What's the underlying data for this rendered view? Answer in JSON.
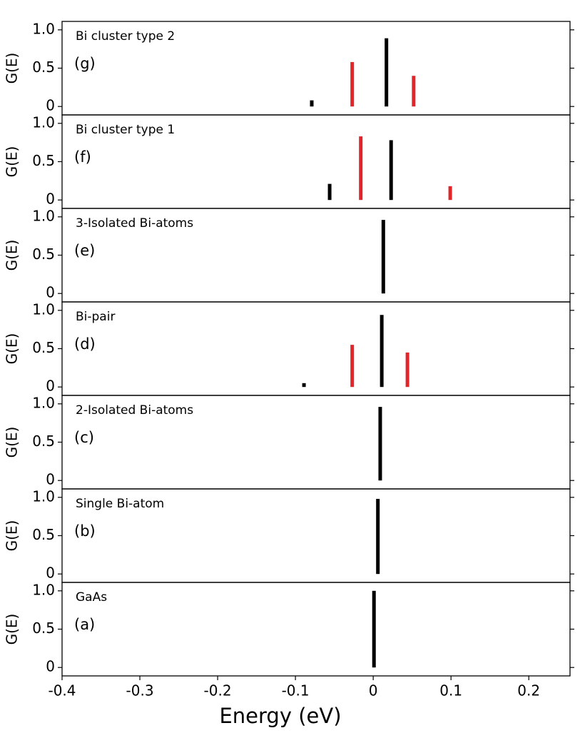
{
  "chart_data": [
    {
      "type": "bar",
      "title": "Bi cluster type 2",
      "label": "(g)",
      "ylabel": "G(E)",
      "x": [
        -0.079,
        -0.027,
        0.017,
        0.052
      ],
      "values": [
        0.08,
        0.58,
        0.89,
        0.4
      ],
      "colors": [
        "#000000",
        "#e0262b",
        "#000000",
        "#e0262b"
      ],
      "xlim": [
        -0.4,
        0.253
      ],
      "ylim": [
        -0.11,
        1.11
      ],
      "yticks": [
        0,
        0.5,
        {
          "value": 1,
          "label": "1.0"
        }
      ]
    },
    {
      "type": "bar",
      "title": "Bi cluster type 1",
      "label": "(f)",
      "ylabel": "G(E)",
      "x": [
        -0.056,
        -0.016,
        0.023,
        0.099
      ],
      "values": [
        0.21,
        0.83,
        0.78,
        0.18
      ],
      "colors": [
        "#000000",
        "#e0262b",
        "#000000",
        "#e0262b"
      ],
      "xlim": [
        -0.4,
        0.253
      ],
      "ylim": [
        -0.11,
        1.11
      ],
      "yticks": [
        0,
        0.5,
        {
          "value": 1,
          "label": "1.0"
        }
      ]
    },
    {
      "type": "bar",
      "title": "3-Isolated Bi-atoms",
      "label": "(e)",
      "ylabel": "G(E)",
      "x": [
        0.013
      ],
      "values": [
        0.96
      ],
      "colors": [
        "#000000"
      ],
      "xlim": [
        -0.4,
        0.253
      ],
      "ylim": [
        -0.11,
        1.11
      ],
      "yticks": [
        0,
        0.5,
        {
          "value": 1,
          "label": "1.0"
        }
      ]
    },
    {
      "type": "bar",
      "title": "Bi-pair",
      "label": "(d)",
      "ylabel": "G(E)",
      "x": [
        -0.089,
        -0.027,
        0.011,
        0.044
      ],
      "values": [
        0.05,
        0.55,
        0.94,
        0.45
      ],
      "colors": [
        "#000000",
        "#e0262b",
        "#000000",
        "#e0262b"
      ],
      "xlim": [
        -0.4,
        0.253
      ],
      "ylim": [
        -0.11,
        1.11
      ],
      "yticks": [
        0,
        0.5,
        {
          "value": 1,
          "label": "1.0"
        }
      ]
    },
    {
      "type": "bar",
      "title": "2-Isolated Bi-atoms",
      "label": "(c)",
      "ylabel": "G(E)",
      "x": [
        0.009
      ],
      "values": [
        0.96
      ],
      "colors": [
        "#000000"
      ],
      "xlim": [
        -0.4,
        0.253
      ],
      "ylim": [
        -0.11,
        1.11
      ],
      "yticks": [
        0,
        0.5,
        {
          "value": 1,
          "label": "1.0"
        }
      ]
    },
    {
      "type": "bar",
      "title": "Single Bi-atom",
      "label": "(b)",
      "ylabel": "G(E)",
      "x": [
        0.006
      ],
      "values": [
        0.98
      ],
      "colors": [
        "#000000"
      ],
      "xlim": [
        -0.4,
        0.253
      ],
      "ylim": [
        -0.11,
        1.11
      ],
      "yticks": [
        0,
        0.5,
        {
          "value": 1,
          "label": "1.0"
        }
      ]
    },
    {
      "type": "bar",
      "title": "GaAs",
      "label": "(a)",
      "ylabel": "G(E)",
      "x": [
        0.001
      ],
      "values": [
        1.0
      ],
      "colors": [
        "#000000"
      ],
      "xlim": [
        -0.4,
        0.253
      ],
      "ylim": [
        -0.11,
        1.11
      ],
      "yticks": [
        0,
        0.5,
        {
          "value": 1,
          "label": "1.0"
        }
      ],
      "xlabel": "Energy (eV)",
      "xticks": [
        -0.4,
        -0.3,
        -0.2,
        -0.1,
        0,
        0.1,
        0.2
      ]
    }
  ]
}
